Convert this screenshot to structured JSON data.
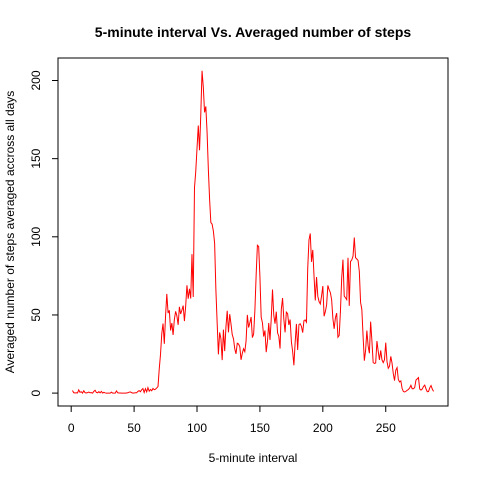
{
  "chart_data": {
    "type": "line",
    "title": "5-minute interval Vs. Averaged number of steps",
    "xlabel": "5-minute interval",
    "ylabel": "Averaged number of steps averaged accross all days",
    "x": [
      1,
      2,
      3,
      4,
      5,
      6,
      7,
      8,
      9,
      10,
      11,
      12,
      13,
      14,
      15,
      16,
      17,
      18,
      19,
      20,
      21,
      22,
      23,
      24,
      25,
      26,
      27,
      28,
      29,
      30,
      31,
      32,
      33,
      34,
      35,
      36,
      37,
      38,
      39,
      40,
      41,
      42,
      43,
      44,
      45,
      46,
      47,
      48,
      49,
      50,
      51,
      52,
      53,
      54,
      55,
      56,
      57,
      58,
      59,
      60,
      61,
      62,
      63,
      64,
      65,
      66,
      67,
      68,
      69,
      70,
      71,
      72,
      73,
      74,
      75,
      76,
      77,
      78,
      79,
      80,
      81,
      82,
      83,
      84,
      85,
      86,
      87,
      88,
      89,
      90,
      91,
      92,
      93,
      94,
      95,
      96,
      97,
      98,
      99,
      100,
      101,
      102,
      103,
      104,
      105,
      106,
      107,
      108,
      109,
      110,
      111,
      112,
      113,
      114,
      115,
      116,
      117,
      118,
      119,
      120,
      121,
      122,
      123,
      124,
      125,
      126,
      127,
      128,
      129,
      130,
      131,
      132,
      133,
      134,
      135,
      136,
      137,
      138,
      139,
      140,
      141,
      142,
      143,
      144,
      145,
      146,
      147,
      148,
      149,
      150,
      151,
      152,
      153,
      154,
      155,
      156,
      157,
      158,
      159,
      160,
      161,
      162,
      163,
      164,
      165,
      166,
      167,
      168,
      169,
      170,
      171,
      172,
      173,
      174,
      175,
      176,
      177,
      178,
      179,
      180,
      181,
      182,
      183,
      184,
      185,
      186,
      187,
      188,
      189,
      190,
      191,
      192,
      193,
      194,
      195,
      196,
      197,
      198,
      199,
      200,
      201,
      202,
      203,
      204,
      205,
      206,
      207,
      208,
      209,
      210,
      211,
      212,
      213,
      214,
      215,
      216,
      217,
      218,
      219,
      220,
      221,
      222,
      223,
      224,
      225,
      226,
      227,
      228,
      229,
      230,
      231,
      232,
      233,
      234,
      235,
      236,
      237,
      238,
      239,
      240,
      241,
      242,
      243,
      244,
      245,
      246,
      247,
      248,
      249,
      250,
      251,
      252,
      253,
      254,
      255,
      256,
      257,
      258,
      259,
      260,
      261,
      262,
      263,
      264,
      265,
      266,
      267,
      268,
      269,
      270,
      271,
      272,
      273,
      274,
      275,
      276,
      277,
      278,
      279,
      280,
      281,
      282,
      283,
      284,
      285,
      286,
      287,
      288
    ],
    "series": [
      {
        "name": "steps",
        "color": "#ff0000",
        "values": [
          1.7,
          0.3,
          0.1,
          0.2,
          0.1,
          2.1,
          0.5,
          0.9,
          0,
          1.5,
          0.3,
          0.1,
          0.3,
          0.7,
          0.2,
          0.3,
          0,
          1.1,
          1.8,
          0.4,
          0.2,
          0.9,
          0.2,
          1.1,
          0,
          0.5,
          0.1,
          0,
          0,
          0,
          0,
          0.6,
          0,
          0,
          0,
          1.4,
          0.2,
          0.1,
          0.1,
          0,
          0,
          0,
          0,
          0.1,
          0.2,
          0.6,
          0.8,
          0.3,
          0,
          0.1,
          0.2,
          0.2,
          1.1,
          1.6,
          0.9,
          2.1,
          2.9,
          0.4,
          2.8,
          0.8,
          3.5,
          1.2,
          2.3,
          1.5,
          3.0,
          2.2,
          2.5,
          3.3,
          4.2,
          15.6,
          24.8,
          38.0,
          44.5,
          31.5,
          49.3,
          63.5,
          51.2,
          53.0,
          40.1,
          44.8,
          37.2,
          47.1,
          52.3,
          49.4,
          43.7,
          55.2,
          50.6,
          53.1,
          56.0,
          46.1,
          55.7,
          69.0,
          60.4,
          66.7,
          60.5,
          88.9,
          61.5,
          131.4,
          141.8,
          156.6,
          171.2,
          155.4,
          178.1,
          206.2,
          195.9,
          179.6,
          183.4,
          167.0,
          143.5,
          124.0,
          109.1,
          108.1,
          103.7,
          95.9,
          66.2,
          45.2,
          24.8,
          38.8,
          34.9,
          21.1,
          40.6,
          26.9,
          42.4,
          52.7,
          38.9,
          50.5,
          44.3,
          37.4,
          34.7,
          28.3,
          25.1,
          31.9,
          31.4,
          29.7,
          21.3,
          25.5,
          28.4,
          26.5,
          33.4,
          50.0,
          42.0,
          44.9,
          48.7,
          35.5,
          37.7,
          53.0,
          75.6,
          94.6,
          93.8,
          74.5,
          48.6,
          45.0,
          36.2,
          40.1,
          26.2,
          33.2,
          44.8,
          34.0,
          47.5,
          66.3,
          50.0,
          44.4,
          52.1,
          38.6,
          36.4,
          28.5,
          53.6,
          60.8,
          47.3,
          38.9,
          51.8,
          50.9,
          43.6,
          47.1,
          32.9,
          26.7,
          17.8,
          32.4,
          44.3,
          27.6,
          43.8,
          44.4,
          42.7,
          38.7,
          46.4,
          46.8,
          45.4,
          80.0,
          98.0,
          102.1,
          84.0,
          91.6,
          75.0,
          59.3,
          74.3,
          62.0,
          58.5,
          57.0,
          62.2,
          68.5,
          49.2,
          52.1,
          56.4,
          68.9,
          66.2,
          64.3,
          59.7,
          47.7,
          41.1,
          48.2,
          51.2,
          35.8,
          36.9,
          52.5,
          73.6,
          85.4,
          62.1,
          61.0,
          59.8,
          86.6,
          55.8,
          84.2,
          85.2,
          87.6,
          99.5,
          86.6,
          85.8,
          84.9,
          77.8,
          58.0,
          53.5,
          36.3,
          20.7,
          27.4,
          40.0,
          30.2,
          25.5,
          45.7,
          33.5,
          19.6,
          19.0,
          19.3,
          33.3,
          26.8,
          21.2,
          27.3,
          21.3,
          19.5,
          21.3,
          32.3,
          20.2,
          15.9,
          17.2,
          23.5,
          19.2,
          12.5,
          8.0,
          14.7,
          16.3,
          8.7,
          7.1,
          7.8,
          3.0,
          1.0,
          0.7,
          1.1,
          1.8,
          2.3,
          3.3,
          5.0,
          2.8,
          2.8,
          3.5,
          8.3,
          9.1,
          9.9,
          2.6,
          1.9,
          2.6,
          4.2,
          5.1,
          2.7,
          0.9,
          1.0,
          3.4,
          4.8,
          2.6,
          1.1
        ]
      }
    ],
    "xlim": [
      -10.48,
      299.48
    ],
    "xticks": [
      0,
      50,
      100,
      150,
      200,
      250
    ],
    "ylim": [
      -8.25,
      214.4
    ],
    "yticks": [
      0,
      50,
      100,
      150,
      200
    ]
  }
}
